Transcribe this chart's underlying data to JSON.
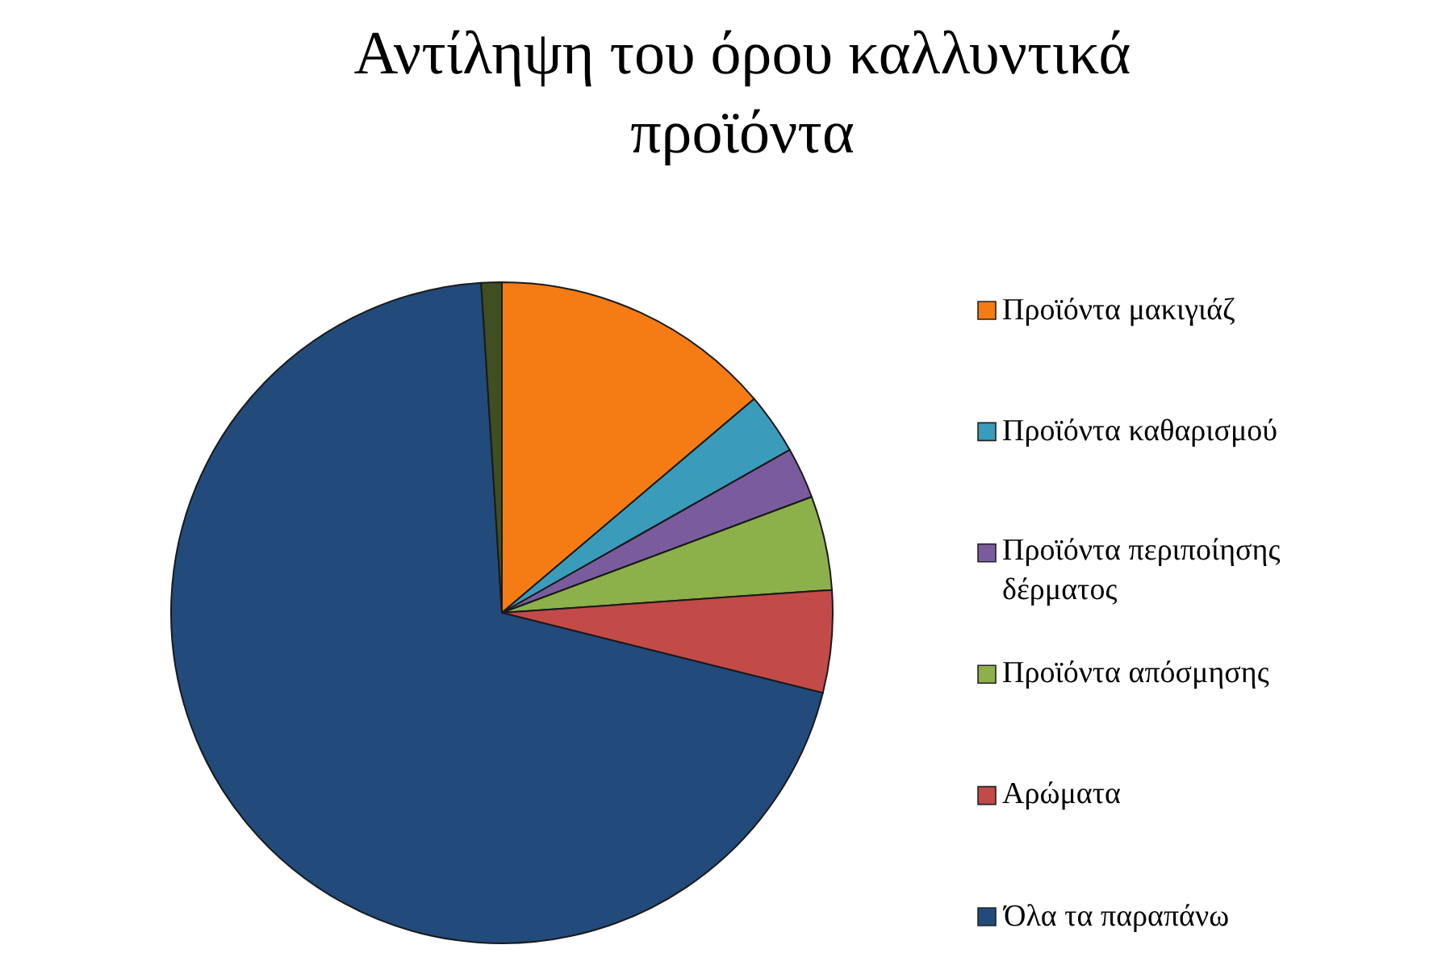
{
  "chart_data": {
    "type": "pie",
    "title": "Αντίληψη του όρου καλλυντικά προϊόντα",
    "categories": [
      "Προϊόντα μακιγιάζ",
      "Προϊόντα καθαρισμού",
      "Προϊόντα περιποίησης δέρματος",
      "Προϊόντα απόσμησης",
      "Αρώματα",
      "Όλα τα παραπάνω",
      null
    ],
    "values": [
      13.8,
      3,
      2.5,
      4.6,
      5,
      70.1,
      1
    ],
    "colors": [
      "#f57c14",
      "#3a9cba",
      "#7a5c9e",
      "#8db14a",
      "#c24a48",
      "#224b7c",
      "#3f4f22"
    ],
    "legend": "right"
  }
}
